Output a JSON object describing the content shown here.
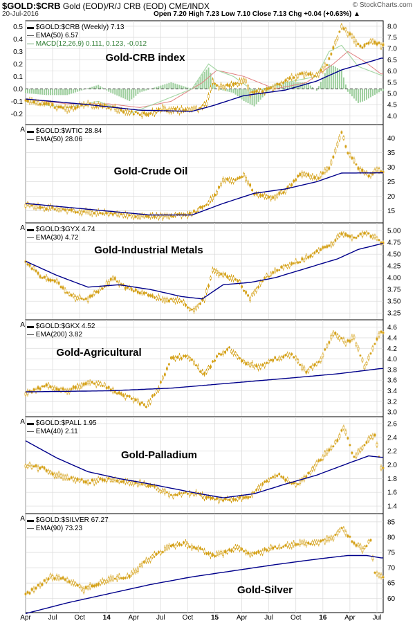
{
  "header": {
    "symbol": "$GOLD:$CRB",
    "description": "Gold (EOD)/R/J CRB (EOD)  CME/INDX",
    "date": "20-Jul-2016",
    "ohlc": "Open 7.20  High 7.23  Low 7.10  Close 7.13  Chg +0.04 (+0.63%) ▲",
    "logo": "© StockCharts.com"
  },
  "x_axis": {
    "tick_labels": [
      "Apr",
      "Jul",
      "Oct",
      "14",
      "Apr",
      "Jul",
      "Oct",
      "15",
      "Apr",
      "Jul",
      "Oct",
      "16",
      "Apr",
      "Jul"
    ],
    "tick_weeks": [
      0,
      13,
      26,
      39,
      52,
      65,
      78,
      91,
      104,
      117,
      130,
      143,
      156,
      169
    ],
    "bold_labels": [
      "14",
      "15",
      "16"
    ],
    "total_weeks": 172
  },
  "colors": {
    "price": "#d4a017",
    "ema": "#00008b",
    "macd": "#5ba35b",
    "signal": "#e08080",
    "hist": "#9ecf9e",
    "grid": "#d9d9d9"
  },
  "chart_data": [
    {
      "type": "line",
      "title": "Gold-CRB index",
      "legend": [
        "$GOLD:$CRB (Weekly) 7.13",
        "EMA(50) 6.57"
      ],
      "macd_legend": "MACD(12,26,9) 0.111, 0.123, -0.012",
      "yticks": [
        4.0,
        4.5,
        5.0,
        5.5,
        6.0,
        6.5,
        7.0,
        7.5,
        8.0
      ],
      "ylim": [
        3.7,
        8.15
      ],
      "left_ticks": [
        "0.5",
        "0.4",
        "0.3",
        "0.2",
        "0.1",
        "0.0",
        "-0.1",
        "-0.2"
      ],
      "macd_range": [
        -0.27,
        0.53
      ],
      "price_knots": [
        [
          0,
          4.7
        ],
        [
          10,
          4.5
        ],
        [
          20,
          4.3
        ],
        [
          30,
          4.5
        ],
        [
          40,
          4.4
        ],
        [
          50,
          4.15
        ],
        [
          58,
          4.05
        ],
        [
          66,
          4.3
        ],
        [
          74,
          4.25
        ],
        [
          83,
          4.3
        ],
        [
          87,
          4.6
        ],
        [
          90,
          5.5
        ],
        [
          93,
          5.3
        ],
        [
          100,
          5.35
        ],
        [
          106,
          5.6
        ],
        [
          108,
          5.0
        ],
        [
          115,
          5.1
        ],
        [
          125,
          5.55
        ],
        [
          133,
          5.85
        ],
        [
          140,
          5.8
        ],
        [
          145,
          6.3
        ],
        [
          152,
          8.0
        ],
        [
          157,
          7.5
        ],
        [
          162,
          7.0
        ],
        [
          166,
          7.4
        ],
        [
          171,
          7.15
        ]
      ],
      "ema_knots": [
        [
          0,
          4.75
        ],
        [
          30,
          4.5
        ],
        [
          55,
          4.25
        ],
        [
          80,
          4.2
        ],
        [
          90,
          4.45
        ],
        [
          105,
          4.9
        ],
        [
          125,
          5.15
        ],
        [
          140,
          5.55
        ],
        [
          152,
          6.05
        ],
        [
          165,
          6.4
        ],
        [
          171,
          6.57
        ]
      ],
      "macd_knots": [
        [
          0,
          -0.1
        ],
        [
          10,
          -0.13
        ],
        [
          20,
          -0.15
        ],
        [
          35,
          -0.1
        ],
        [
          50,
          -0.2
        ],
        [
          65,
          -0.1
        ],
        [
          80,
          0.0
        ],
        [
          88,
          0.2
        ],
        [
          92,
          0.15
        ],
        [
          100,
          0.1
        ],
        [
          110,
          -0.02
        ],
        [
          125,
          0.05
        ],
        [
          140,
          0.1
        ],
        [
          146,
          0.3
        ],
        [
          152,
          0.35
        ],
        [
          160,
          0.18
        ],
        [
          171,
          0.11
        ]
      ],
      "signal_knots": [
        [
          0,
          -0.08
        ],
        [
          20,
          -0.12
        ],
        [
          40,
          -0.12
        ],
        [
          55,
          -0.15
        ],
        [
          70,
          -0.1
        ],
        [
          85,
          0.05
        ],
        [
          92,
          0.15
        ],
        [
          105,
          0.1
        ],
        [
          120,
          0.0
        ],
        [
          135,
          0.05
        ],
        [
          148,
          0.2
        ],
        [
          155,
          0.3
        ],
        [
          163,
          0.22
        ],
        [
          171,
          0.12
        ]
      ]
    },
    {
      "type": "line",
      "title": "Gold-Crude Oil",
      "legend": [
        "$GOLD:$WTIC 28.84",
        "EMA(50) 28.06"
      ],
      "yticks": [
        15,
        20,
        25,
        30,
        35,
        40
      ],
      "ylim": [
        11.5,
        44
      ],
      "price_knots": [
        [
          0,
          17
        ],
        [
          20,
          15
        ],
        [
          40,
          14
        ],
        [
          55,
          13
        ],
        [
          70,
          13
        ],
        [
          80,
          14
        ],
        [
          87,
          17
        ],
        [
          92,
          21
        ],
        [
          95,
          26
        ],
        [
          100,
          25
        ],
        [
          105,
          27
        ],
        [
          110,
          21
        ],
        [
          118,
          19
        ],
        [
          125,
          22
        ],
        [
          133,
          28
        ],
        [
          140,
          26
        ],
        [
          146,
          30
        ],
        [
          152,
          42
        ],
        [
          155,
          35
        ],
        [
          160,
          30
        ],
        [
          165,
          27
        ],
        [
          169,
          29
        ],
        [
          171,
          28.8
        ]
      ],
      "ema_knots": [
        [
          0,
          17.5
        ],
        [
          30,
          15.5
        ],
        [
          60,
          13.5
        ],
        [
          80,
          13.5
        ],
        [
          95,
          17.5
        ],
        [
          110,
          21
        ],
        [
          125,
          22.5
        ],
        [
          140,
          25
        ],
        [
          152,
          28
        ],
        [
          171,
          28.06
        ]
      ]
    },
    {
      "type": "line",
      "title": "Gold-Industrial Metals",
      "legend": [
        "$GOLD:$GYX 4.74",
        "EMA(30) 4.72"
      ],
      "yticks": [
        3.25,
        3.5,
        3.75,
        4.0,
        4.25,
        4.5,
        4.75,
        5.0
      ],
      "ylim": [
        3.15,
        5.12
      ],
      "price_knots": [
        [
          0,
          4.35
        ],
        [
          8,
          4.0
        ],
        [
          15,
          3.9
        ],
        [
          22,
          3.6
        ],
        [
          30,
          3.55
        ],
        [
          36,
          3.75
        ],
        [
          42,
          4.0
        ],
        [
          48,
          3.8
        ],
        [
          55,
          3.7
        ],
        [
          65,
          3.55
        ],
        [
          75,
          3.5
        ],
        [
          80,
          3.3
        ],
        [
          86,
          3.55
        ],
        [
          90,
          4.15
        ],
        [
          96,
          4.05
        ],
        [
          102,
          3.95
        ],
        [
          108,
          3.55
        ],
        [
          115,
          4.0
        ],
        [
          125,
          4.25
        ],
        [
          132,
          4.35
        ],
        [
          140,
          4.55
        ],
        [
          148,
          4.75
        ],
        [
          152,
          4.95
        ],
        [
          158,
          4.85
        ],
        [
          164,
          4.95
        ],
        [
          168,
          4.85
        ],
        [
          171,
          4.74
        ]
      ],
      "ema_knots": [
        [
          0,
          4.35
        ],
        [
          15,
          4.05
        ],
        [
          30,
          3.8
        ],
        [
          45,
          3.85
        ],
        [
          60,
          3.75
        ],
        [
          75,
          3.6
        ],
        [
          85,
          3.55
        ],
        [
          95,
          3.85
        ],
        [
          108,
          3.9
        ],
        [
          120,
          4.0
        ],
        [
          135,
          4.2
        ],
        [
          150,
          4.4
        ],
        [
          160,
          4.6
        ],
        [
          171,
          4.72
        ]
      ]
    },
    {
      "type": "line",
      "title": "Gold-Agricultural",
      "legend": [
        "$GOLD:$GKX 4.52",
        "EMA(200) 3.82"
      ],
      "yticks": [
        3.0,
        3.2,
        3.4,
        3.6,
        3.8,
        4.0,
        4.2,
        4.4,
        4.6
      ],
      "ylim": [
        2.95,
        4.7
      ],
      "price_knots": [
        [
          0,
          3.35
        ],
        [
          10,
          3.5
        ],
        [
          20,
          3.4
        ],
        [
          30,
          3.55
        ],
        [
          38,
          3.5
        ],
        [
          45,
          3.35
        ],
        [
          52,
          3.25
        ],
        [
          58,
          3.1
        ],
        [
          64,
          3.45
        ],
        [
          70,
          4.0
        ],
        [
          78,
          4.05
        ],
        [
          86,
          3.7
        ],
        [
          92,
          4.05
        ],
        [
          98,
          4.2
        ],
        [
          104,
          3.95
        ],
        [
          112,
          3.85
        ],
        [
          120,
          4.0
        ],
        [
          128,
          4.1
        ],
        [
          135,
          3.75
        ],
        [
          142,
          4.0
        ],
        [
          148,
          4.5
        ],
        [
          154,
          4.3
        ],
        [
          158,
          4.4
        ],
        [
          163,
          3.85
        ],
        [
          167,
          4.2
        ],
        [
          171,
          4.52
        ]
      ],
      "ema_knots": [
        [
          0,
          3.38
        ],
        [
          40,
          3.4
        ],
        [
          70,
          3.45
        ],
        [
          100,
          3.55
        ],
        [
          130,
          3.65
        ],
        [
          150,
          3.72
        ],
        [
          171,
          3.82
        ]
      ]
    },
    {
      "type": "line",
      "title": "Gold-Palladium",
      "legend": [
        "$GOLD:$PALL 1.95",
        "EMA(40) 2.11"
      ],
      "yticks": [
        1.4,
        1.6,
        1.8,
        2.0,
        2.2,
        2.4,
        2.6
      ],
      "ylim": [
        1.32,
        2.67
      ],
      "price_knots": [
        [
          0,
          2.0
        ],
        [
          8,
          1.95
        ],
        [
          15,
          1.85
        ],
        [
          22,
          1.8
        ],
        [
          30,
          1.75
        ],
        [
          40,
          1.8
        ],
        [
          50,
          1.75
        ],
        [
          60,
          1.7
        ],
        [
          70,
          1.55
        ],
        [
          80,
          1.6
        ],
        [
          90,
          1.5
        ],
        [
          100,
          1.5
        ],
        [
          108,
          1.55
        ],
        [
          115,
          1.75
        ],
        [
          122,
          1.85
        ],
        [
          130,
          1.7
        ],
        [
          137,
          1.9
        ],
        [
          144,
          2.15
        ],
        [
          150,
          2.35
        ],
        [
          153,
          2.55
        ],
        [
          158,
          2.1
        ],
        [
          163,
          2.3
        ],
        [
          168,
          2.45
        ],
        [
          171,
          1.95
        ]
      ],
      "ema_knots": [
        [
          0,
          2.35
        ],
        [
          15,
          2.1
        ],
        [
          30,
          1.9
        ],
        [
          45,
          1.8
        ],
        [
          60,
          1.72
        ],
        [
          80,
          1.6
        ],
        [
          95,
          1.52
        ],
        [
          110,
          1.58
        ],
        [
          125,
          1.72
        ],
        [
          140,
          1.85
        ],
        [
          155,
          2.02
        ],
        [
          165,
          2.13
        ],
        [
          171,
          2.11
        ]
      ]
    },
    {
      "type": "line",
      "title": "Gold-Silver",
      "legend": [
        "$GOLD:$SILVER 67.27",
        "EMA(90) 73.23"
      ],
      "yticks": [
        60,
        65,
        70,
        75,
        80,
        85
      ],
      "ylim": [
        56,
        87
      ],
      "price_knots": [
        [
          0,
          61
        ],
        [
          6,
          64
        ],
        [
          12,
          67
        ],
        [
          20,
          66
        ],
        [
          28,
          63
        ],
        [
          36,
          65
        ],
        [
          44,
          67
        ],
        [
          50,
          67
        ],
        [
          56,
          71
        ],
        [
          62,
          74
        ],
        [
          70,
          77
        ],
        [
          76,
          78
        ],
        [
          84,
          76
        ],
        [
          90,
          74
        ],
        [
          96,
          75
        ],
        [
          102,
          77
        ],
        [
          108,
          74
        ],
        [
          116,
          76
        ],
        [
          124,
          77
        ],
        [
          132,
          78
        ],
        [
          140,
          78
        ],
        [
          148,
          80
        ],
        [
          152,
          83
        ],
        [
          158,
          78
        ],
        [
          162,
          76
        ],
        [
          166,
          79
        ],
        [
          168,
          68
        ],
        [
          171,
          67.3
        ]
      ],
      "ema_knots": [
        [
          0,
          55
        ],
        [
          20,
          58.5
        ],
        [
          40,
          61.5
        ],
        [
          60,
          64.5
        ],
        [
          80,
          67
        ],
        [
          100,
          69
        ],
        [
          120,
          71
        ],
        [
          140,
          72.8
        ],
        [
          155,
          74
        ],
        [
          164,
          74
        ],
        [
          171,
          73.23
        ]
      ]
    }
  ]
}
